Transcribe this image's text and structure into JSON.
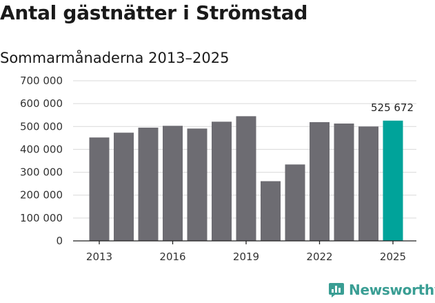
{
  "chart_data": {
    "type": "bar",
    "title": "Antal gästnätter i Strömstad",
    "subtitle": "Sommarmånaderna 2013–2025",
    "x": [
      2013,
      2014,
      2015,
      2016,
      2017,
      2018,
      2019,
      2020,
      2021,
      2022,
      2023,
      2024,
      2025
    ],
    "values": [
      452000,
      473000,
      495000,
      503000,
      491000,
      521000,
      545000,
      261000,
      334000,
      519000,
      513000,
      500000,
      525672
    ],
    "x_tick_labels": [
      "2013",
      "2016",
      "2019",
      "2022",
      "2025"
    ],
    "x_tick_years": [
      2013,
      2016,
      2019,
      2022,
      2025
    ],
    "y_ticks": [
      0,
      100000,
      200000,
      300000,
      400000,
      500000,
      600000,
      700000
    ],
    "y_tick_labels": [
      "0",
      "100 000",
      "200 000",
      "300 000",
      "400 000",
      "500 000",
      "600 000",
      "700 000"
    ],
    "ylim": [
      0,
      700000
    ],
    "grid": true,
    "highlight_index": 12,
    "data_label": "525 672",
    "colors": {
      "bar": "#6d6c72",
      "highlight": "#00a39a",
      "grid": "#d9d9d9",
      "axis": "#222222"
    }
  },
  "brand": {
    "name": "Newsworthy",
    "icon": "newsworthy-bar-chart-icon"
  }
}
